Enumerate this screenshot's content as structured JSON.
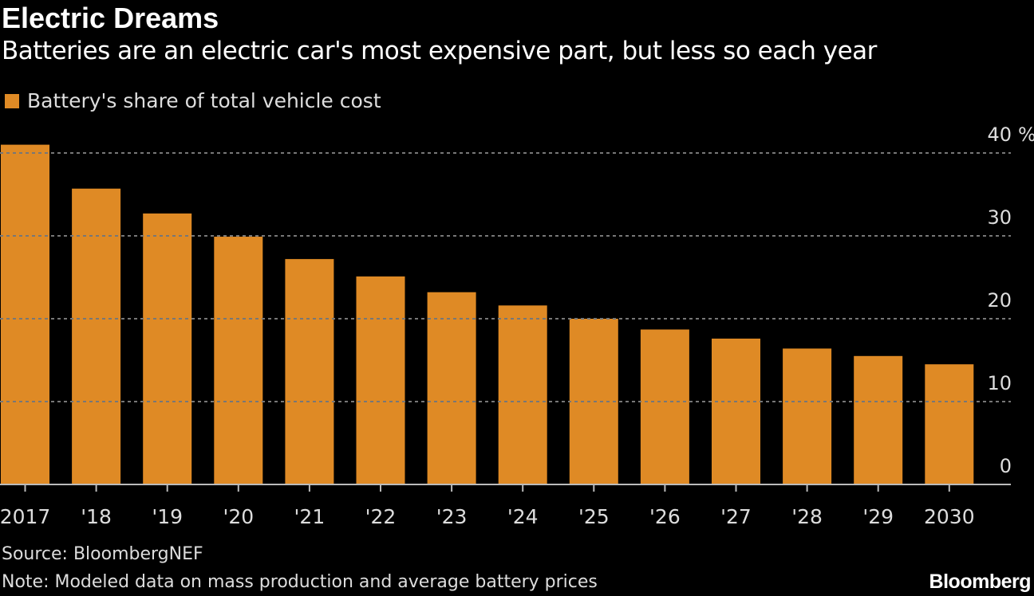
{
  "chart_data": {
    "type": "bar",
    "title": "Electric Dreams",
    "subtitle": "Batteries are an electric car's most expensive part, but less so each year",
    "categories": [
      "2017",
      "'18",
      "'19",
      "'20",
      "'21",
      "'22",
      "'23",
      "'24",
      "'25",
      "'26",
      "'27",
      "'28",
      "'29",
      "2030"
    ],
    "series": [
      {
        "name": "Battery's share of total vehicle cost",
        "values": [
          41.0,
          35.7,
          32.7,
          29.9,
          27.2,
          25.1,
          23.2,
          21.6,
          20.0,
          18.7,
          17.6,
          16.4,
          15.5,
          14.5
        ]
      }
    ],
    "ylim": [
      0,
      40
    ],
    "yticks": [
      "0",
      "10",
      "20",
      "30",
      "40"
    ],
    "yunit": "%",
    "y_axis_side": "right",
    "grid": true,
    "legend_position": "top-left",
    "colors": {
      "bar": "#df8a25",
      "grid": "#777777",
      "background": "#000000"
    }
  },
  "footer": {
    "source": "Source: BloombergNEF",
    "note": "Note: Modeled data on mass production and average battery prices",
    "logo": "Bloomberg"
  }
}
